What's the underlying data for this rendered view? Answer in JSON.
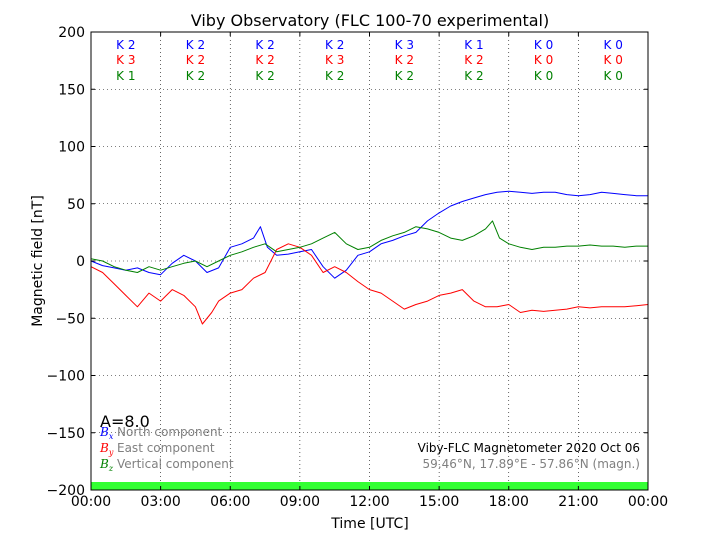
{
  "chart_data": {
    "type": "line",
    "title": "Viby Observatory (FLC 100-70 experimental)",
    "xlabel": "Time [UTC]",
    "ylabel": "Magnetic field [nT]",
    "xlim": [
      0,
      24
    ],
    "ylim": [
      -200,
      200
    ],
    "x_ticks": [
      "00:00",
      "03:00",
      "06:00",
      "09:00",
      "12:00",
      "15:00",
      "18:00",
      "21:00",
      "00:00"
    ],
    "y_ticks": [
      "200",
      "150",
      "100",
      "50",
      "0",
      "−50",
      "−100",
      "−150",
      "−200"
    ],
    "grid": true,
    "k_indices": {
      "north": [
        "K 2",
        "K 2",
        "K 2",
        "K 2",
        "K 3",
        "K 1",
        "K 0",
        "K 0"
      ],
      "east": [
        "K 3",
        "K 2",
        "K 2",
        "K 3",
        "K 2",
        "K 2",
        "K 0",
        "K 0"
      ],
      "vertical": [
        "K 1",
        "K 2",
        "K 2",
        "K 2",
        "K 2",
        "K 2",
        "K 0",
        "K 0"
      ]
    },
    "a_index": "A=8.0",
    "legend": {
      "placement": "bottom-left",
      "entries": [
        {
          "symbol": "B",
          "sub": "x",
          "label": "North component"
        },
        {
          "symbol": "B",
          "sub": "y",
          "label": "East component"
        },
        {
          "symbol": "B",
          "sub": "z",
          "label": "Vertical component"
        }
      ]
    },
    "info": {
      "line1": "Viby-FLC Magnetometer 2020 Oct 06",
      "line2": "59.46°N, 17.89°E - 57.86°N (magn.)"
    },
    "series": [
      {
        "component": "north",
        "color": "#0000ff",
        "x": [
          0,
          0.5,
          1.0,
          1.5,
          2.0,
          2.5,
          3.0,
          3.5,
          4.0,
          4.5,
          5.0,
          5.5,
          6.0,
          6.5,
          7.0,
          7.3,
          7.6,
          8.0,
          8.5,
          9.0,
          9.5,
          10.0,
          10.5,
          11.0,
          11.5,
          12.0,
          12.5,
          13.0,
          13.5,
          14.0,
          14.5,
          15.0,
          15.5,
          16.0,
          16.5,
          17.0,
          17.5,
          18.0,
          18.5,
          19.0,
          19.5,
          20.0,
          20.5,
          21.0,
          21.5,
          22.0,
          22.5,
          23.0,
          23.5,
          24.0
        ],
        "y": [
          0,
          -4,
          -6,
          -8,
          -6,
          -10,
          -12,
          -2,
          5,
          0,
          -10,
          -6,
          12,
          15,
          20,
          30,
          12,
          5,
          6,
          8,
          10,
          -5,
          -15,
          -8,
          5,
          8,
          15,
          18,
          22,
          25,
          35,
          42,
          48,
          52,
          55,
          58,
          60,
          61,
          60,
          59,
          60,
          60,
          58,
          57,
          58,
          60,
          59,
          58,
          57,
          57
        ]
      },
      {
        "component": "east",
        "color": "#ff0000",
        "x": [
          0,
          0.5,
          1.0,
          1.5,
          2.0,
          2.5,
          3.0,
          3.5,
          4.0,
          4.5,
          4.8,
          5.2,
          5.5,
          6.0,
          6.5,
          7.0,
          7.5,
          8.0,
          8.5,
          9.0,
          9.5,
          10.0,
          10.5,
          11.0,
          11.5,
          12.0,
          12.5,
          13.0,
          13.5,
          14.0,
          14.5,
          15.0,
          15.5,
          16.0,
          16.5,
          17.0,
          17.5,
          18.0,
          18.5,
          19.0,
          19.5,
          20.0,
          20.5,
          21.0,
          21.5,
          22.0,
          22.5,
          23.0,
          23.5,
          24.0
        ],
        "y": [
          -5,
          -10,
          -20,
          -30,
          -40,
          -28,
          -35,
          -25,
          -30,
          -40,
          -55,
          -45,
          -35,
          -28,
          -25,
          -15,
          -10,
          10,
          15,
          12,
          5,
          -10,
          -5,
          -10,
          -18,
          -25,
          -28,
          -35,
          -42,
          -38,
          -35,
          -30,
          -28,
          -25,
          -35,
          -40,
          -40,
          -38,
          -45,
          -43,
          -44,
          -43,
          -42,
          -40,
          -41,
          -40,
          -40,
          -40,
          -39,
          -38
        ]
      },
      {
        "component": "vertical",
        "color": "#008000",
        "x": [
          0,
          0.5,
          1.0,
          1.5,
          2.0,
          2.5,
          3.0,
          3.5,
          4.0,
          4.5,
          5.0,
          5.5,
          6.0,
          6.5,
          7.0,
          7.5,
          8.0,
          8.5,
          9.0,
          9.5,
          10.0,
          10.5,
          11.0,
          11.5,
          12.0,
          12.5,
          13.0,
          13.5,
          14.0,
          14.5,
          15.0,
          15.5,
          16.0,
          16.5,
          17.0,
          17.3,
          17.6,
          18.0,
          18.5,
          19.0,
          19.5,
          20.0,
          20.5,
          21.0,
          21.5,
          22.0,
          22.5,
          23.0,
          23.5,
          24.0
        ],
        "y": [
          2,
          0,
          -5,
          -8,
          -10,
          -5,
          -8,
          -5,
          -2,
          0,
          -5,
          0,
          5,
          8,
          12,
          15,
          8,
          10,
          12,
          15,
          20,
          25,
          15,
          10,
          12,
          18,
          22,
          25,
          30,
          28,
          25,
          20,
          18,
          22,
          28,
          35,
          20,
          15,
          12,
          10,
          12,
          12,
          13,
          13,
          14,
          13,
          13,
          12,
          13,
          13
        ]
      }
    ]
  }
}
